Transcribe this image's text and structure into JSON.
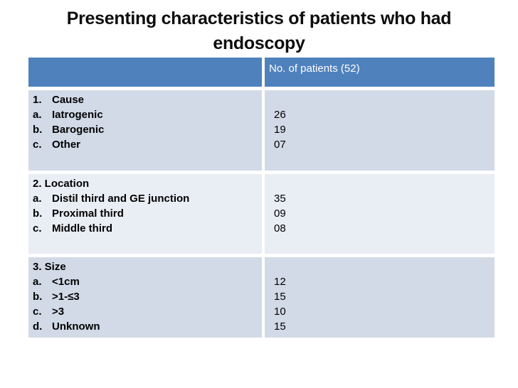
{
  "slide": {
    "title": {
      "line1": "Presenting characteristics of patients who had",
      "line2": "endoscopy"
    }
  },
  "table": {
    "header": {
      "characteristic_label": "",
      "patients_label": "No. of patients (52)"
    },
    "sections": [
      {
        "name": "Cause",
        "title_marker": "1.",
        "title_label": "Cause",
        "items": [
          {
            "marker": "a.",
            "label": "Iatrogenic",
            "value": "26"
          },
          {
            "marker": "b.",
            "label": "Barogenic",
            "value": "19"
          },
          {
            "marker": "c.",
            "label": "Other",
            "value": "07"
          }
        ]
      },
      {
        "name": "Location",
        "title": "2. Location",
        "items": [
          {
            "marker": "a.",
            "label": "Distil third and GE junction",
            "value": "35"
          },
          {
            "marker": "b.",
            "label": "Proximal third",
            "value": "09"
          },
          {
            "marker": "c.",
            "label": "Middle third",
            "value": "08"
          }
        ]
      },
      {
        "name": "Size",
        "title": "3. Size",
        "items": [
          {
            "marker": "a.",
            "label": "<1cm",
            "value": "12"
          },
          {
            "marker": "b.",
            "label": ">1-≤3",
            "value": "15"
          },
          {
            "marker": "c.",
            "label": ">3",
            "value": "10"
          },
          {
            "marker": "d.",
            "label": "Unknown",
            "value": "15"
          }
        ]
      }
    ]
  },
  "colors": {
    "header_bg": "#4f81bd",
    "header_text": "#ffffff",
    "band_dark": "#d2d9e7",
    "band_light": "#e9edf4",
    "title_text": "#0d0d0d",
    "page_bg": "#ffffff"
  }
}
